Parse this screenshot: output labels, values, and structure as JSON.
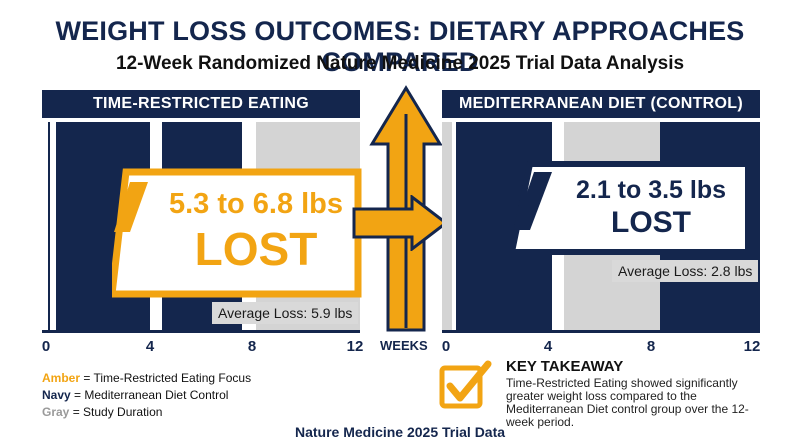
{
  "title": "WEIGHT LOSS OUTCOMES: DIETARY APPROACHES COMPARED",
  "subtitle": "12-Week Randomized Nature Medicine 2025 Trial Data Analysis",
  "colors": {
    "amber": "#f2a413",
    "navy": "#14264d",
    "gray": "#d4d4d4"
  },
  "chart_data": {
    "type": "bar",
    "x_axis_label": "WEEKS",
    "xlim": [
      0,
      12
    ],
    "x_ticks": [
      "0",
      "4",
      "8",
      "12"
    ],
    "panels": [
      {
        "name": "TIME-RESTRICTED EATING",
        "range_text": "5.3 to 6.8 lbs",
        "lost_text": "LOST",
        "range_low": 5.3,
        "range_high": 6.8,
        "average_label": "Average Loss: 5.9 lbs",
        "average": 5.9,
        "accent": "amber"
      },
      {
        "name": "MEDITERRANEAN DIET (CONTROL)",
        "range_text": "2.1 to 3.5 lbs",
        "lost_text": "LOST",
        "range_low": 2.1,
        "range_high": 3.5,
        "average_label": "Average Loss: 2.8 lbs",
        "average": 2.8,
        "accent": "navy"
      }
    ]
  },
  "legend": [
    {
      "key": "Amber",
      "text": " = Time-Restricted Eating Focus",
      "color": "#f2a413"
    },
    {
      "key": "Navy",
      "text": " = Mediterranean Diet Control",
      "color": "#14264d"
    },
    {
      "key": "Gray",
      "text": " = Study Duration",
      "color": "#9a9a9a"
    }
  ],
  "takeaway": {
    "title": "KEY TAKEAWAY",
    "body": "Time-Restricted Eating showed significantly greater weight loss compared to the Mediterranean Diet control group over the 12-week period."
  },
  "footer": "Nature Medicine 2025 Trial Data"
}
